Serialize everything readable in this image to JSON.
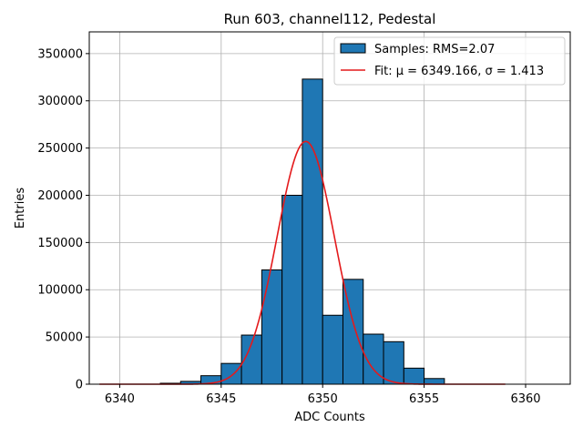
{
  "chart_data": {
    "type": "bar",
    "title": "Run 603, channel112, Pedestal",
    "xlabel": "ADC Counts",
    "ylabel": "Entries",
    "xlim": [
      6338.5,
      6362.2
    ],
    "ylim": [
      0,
      373000
    ],
    "xticks": [
      6340,
      6345,
      6350,
      6355,
      6360
    ],
    "yticks": [
      0,
      50000,
      100000,
      150000,
      200000,
      250000,
      300000,
      350000
    ],
    "grid": true,
    "legend_position": "top-right",
    "bin_width": 1,
    "bins": [
      {
        "x": 6342,
        "value": 1000
      },
      {
        "x": 6343,
        "value": 3000
      },
      {
        "x": 6344,
        "value": 9000
      },
      {
        "x": 6345,
        "value": 22000
      },
      {
        "x": 6346,
        "value": 52000
      },
      {
        "x": 6347,
        "value": 121000
      },
      {
        "x": 6348,
        "value": 200000
      },
      {
        "x": 6349,
        "value": 323000
      },
      {
        "x": 6350,
        "value": 73000
      },
      {
        "x": 6351,
        "value": 111000
      },
      {
        "x": 6352,
        "value": 53000
      },
      {
        "x": 6353,
        "value": 45000
      },
      {
        "x": 6354,
        "value": 17000
      },
      {
        "x": 6355,
        "value": 6000
      }
    ],
    "fit": {
      "mean": 6349.166,
      "sigma": 1.413,
      "amplitude": 257000,
      "x_start": 6339,
      "x_end": 6359
    },
    "series": [
      {
        "name": "Samples: RMS=2.07",
        "color": "#1f77b4"
      },
      {
        "name": "Fit: μ = 6349.166, σ = 1.413",
        "color": "#e41a1c"
      }
    ]
  }
}
